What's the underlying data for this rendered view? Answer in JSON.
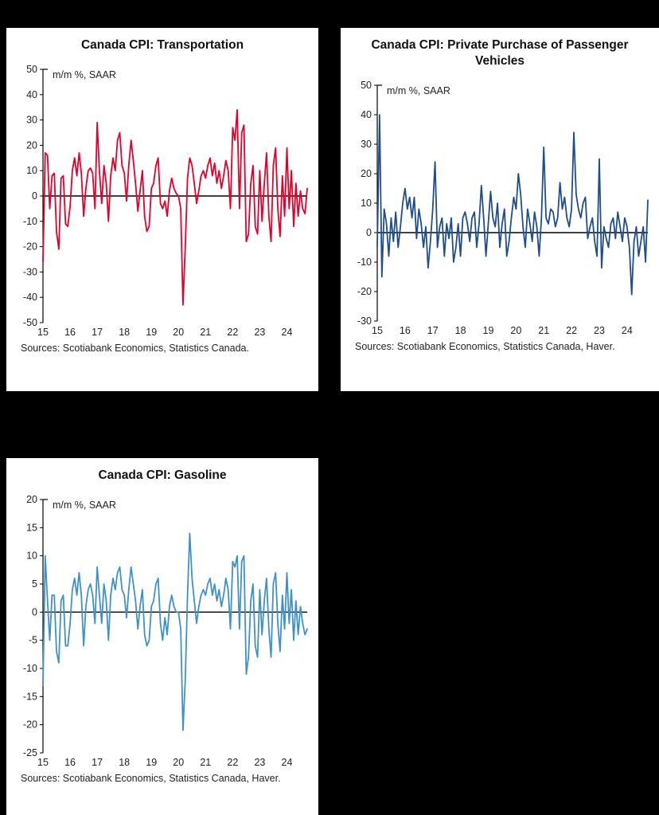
{
  "chart_data": [
    {
      "type": "line",
      "title": "Canada CPI: Transportation",
      "axis_note": "m/m %, SAAR",
      "source": "Sources: Scotiabank Economics, Statistics Canada.",
      "line_color": "#e4002b",
      "ylim": [
        -50,
        50
      ],
      "ytick_step": 10,
      "x_tick_labels": [
        "15",
        "16",
        "17",
        "18",
        "19",
        "20",
        "21",
        "22",
        "23",
        "24"
      ],
      "x_start_year": 2015,
      "frequency": "monthly",
      "values": [
        -26,
        17,
        16,
        -5,
        8,
        9,
        -14,
        -21,
        7,
        8,
        -11,
        -12,
        -4,
        10,
        15,
        8,
        17,
        9,
        -8,
        3,
        10,
        11,
        9,
        -5,
        29,
        10,
        -3,
        12,
        5,
        -10,
        8,
        15,
        10,
        22,
        25,
        12,
        9,
        -2,
        12,
        22,
        14,
        5,
        -6,
        2,
        10,
        -8,
        -14,
        -12,
        3,
        5,
        12,
        15,
        -3,
        -5,
        -2,
        -8,
        2,
        7,
        3,
        1,
        0,
        -5,
        -43,
        -20,
        7,
        15,
        12,
        5,
        -3,
        2,
        8,
        10,
        7,
        12,
        15,
        8,
        13,
        5,
        10,
        3,
        8,
        14,
        10,
        -5,
        27,
        22,
        34,
        -5,
        25,
        28,
        -18,
        -15,
        5,
        12,
        -12,
        -15,
        10,
        -10,
        5,
        17,
        -8,
        -18,
        12,
        19,
        -5,
        -16,
        8,
        -8,
        19,
        -5,
        10,
        -12,
        5,
        -8,
        2,
        -5,
        -7,
        3
      ]
    },
    {
      "type": "line",
      "title": "Canada CPI: Private Purchase of Passenger Vehicles",
      "axis_note": "m/m %, SAAR",
      "source": "Sources: Scotiabank Economics, Statistics Canada, Haver.",
      "line_color": "#1f4e8c",
      "ylim": [
        -30,
        50
      ],
      "ytick_step": 10,
      "x_tick_labels": [
        "15",
        "16",
        "17",
        "18",
        "19",
        "20",
        "21",
        "22",
        "23",
        "24"
      ],
      "x_start_year": 2015,
      "frequency": "monthly",
      "values": [
        -5,
        40,
        -15,
        8,
        3,
        -8,
        5,
        -3,
        7,
        -5,
        2,
        10,
        15,
        8,
        12,
        5,
        12,
        -2,
        8,
        3,
        -5,
        2,
        -12,
        -3,
        8,
        24,
        -5,
        2,
        5,
        -8,
        3,
        -2,
        5,
        -10,
        -5,
        3,
        -8,
        5,
        7,
        3,
        -3,
        5,
        7,
        -5,
        3,
        16,
        5,
        -8,
        3,
        14,
        5,
        2,
        10,
        -5,
        3,
        8,
        -8,
        -3,
        5,
        12,
        8,
        20,
        13,
        2,
        -5,
        8,
        3,
        -3,
        7,
        2,
        -8,
        5,
        29,
        5,
        3,
        8,
        7,
        2,
        5,
        17,
        8,
        12,
        5,
        2,
        8,
        34,
        13,
        8,
        5,
        10,
        12,
        -2,
        2,
        5,
        -3,
        -8,
        25,
        -12,
        2,
        -2,
        -5,
        3,
        5,
        -2,
        7,
        2,
        -3,
        5,
        2,
        -5,
        -21,
        -3,
        2,
        -8,
        -3,
        2,
        -10,
        11
      ]
    },
    {
      "type": "line",
      "title": "Canada CPI: Gasoline",
      "axis_note": "m/m %, SAAR",
      "source": "Sources: Scotiabank Economics, Statistics Canada, Haver.",
      "line_color": "#3f92c8",
      "ylim": [
        -25,
        20
      ],
      "ytick_step": 5,
      "x_tick_labels": [
        "15",
        "16",
        "17",
        "18",
        "19",
        "20",
        "21",
        "22",
        "23",
        "24"
      ],
      "x_start_year": 2015,
      "frequency": "monthly",
      "values": [
        -13,
        10,
        2,
        -5,
        3,
        3,
        -7,
        -9,
        2,
        3,
        -6,
        -6,
        -2,
        4,
        6,
        3,
        7,
        3,
        -6,
        1,
        4,
        5,
        3,
        -2,
        8,
        3,
        -2,
        5,
        2,
        -5,
        3,
        6,
        4,
        7,
        8,
        4,
        3,
        -1,
        4,
        8,
        5,
        2,
        -3,
        1,
        4,
        -4,
        -6,
        -5,
        1,
        2,
        5,
        6,
        -2,
        -5,
        -1,
        -4,
        1,
        3,
        1,
        0,
        0,
        -3,
        -21,
        -12,
        3,
        14,
        6,
        2,
        -2,
        1,
        3,
        4,
        3,
        5,
        6,
        3,
        5,
        2,
        4,
        1,
        3,
        6,
        4,
        -3,
        9,
        8,
        10,
        -3,
        9,
        10,
        -11,
        -8,
        2,
        5,
        -6,
        -8,
        4,
        -4,
        2,
        6,
        -3,
        -8,
        5,
        7,
        -2,
        -7,
        3,
        -3,
        7,
        -2,
        4,
        -5,
        2,
        -4,
        1,
        -2,
        -4,
        -3
      ]
    }
  ]
}
